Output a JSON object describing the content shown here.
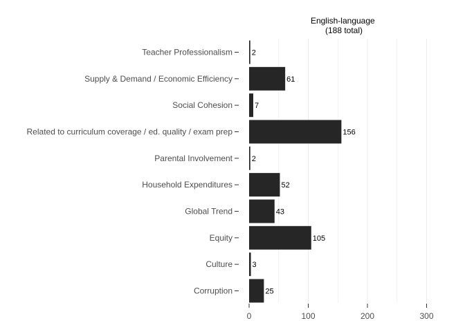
{
  "chart_data": {
    "type": "bar",
    "orientation": "horizontal",
    "title": "English-language\n(188 total)",
    "categories": [
      "Teacher Professionalism",
      "Supply & Demand / Economic Efficiency",
      "Social Cohesion",
      "Related to curriculum coverage / ed. quality / exam prep",
      "Parental Involvement",
      "Household Expenditures",
      "Global Trend",
      "Equity",
      "Culture",
      "Corruption"
    ],
    "values": [
      2,
      61,
      7,
      156,
      2,
      52,
      43,
      105,
      3,
      25
    ],
    "data_labels": [
      "2",
      "61",
      "7",
      "156",
      "2",
      "52",
      "43",
      "105",
      "3",
      "25"
    ],
    "x_ticks": [
      0,
      100,
      200,
      300
    ],
    "x_tick_labels": [
      "0",
      "100",
      "200",
      "300"
    ],
    "xlim": [
      0,
      300
    ],
    "xlabel": "",
    "ylabel": "",
    "grid": "vertical major gridlines",
    "bar_color": "#262626",
    "grid_color": "#ebebeb",
    "background": "#ffffff"
  }
}
